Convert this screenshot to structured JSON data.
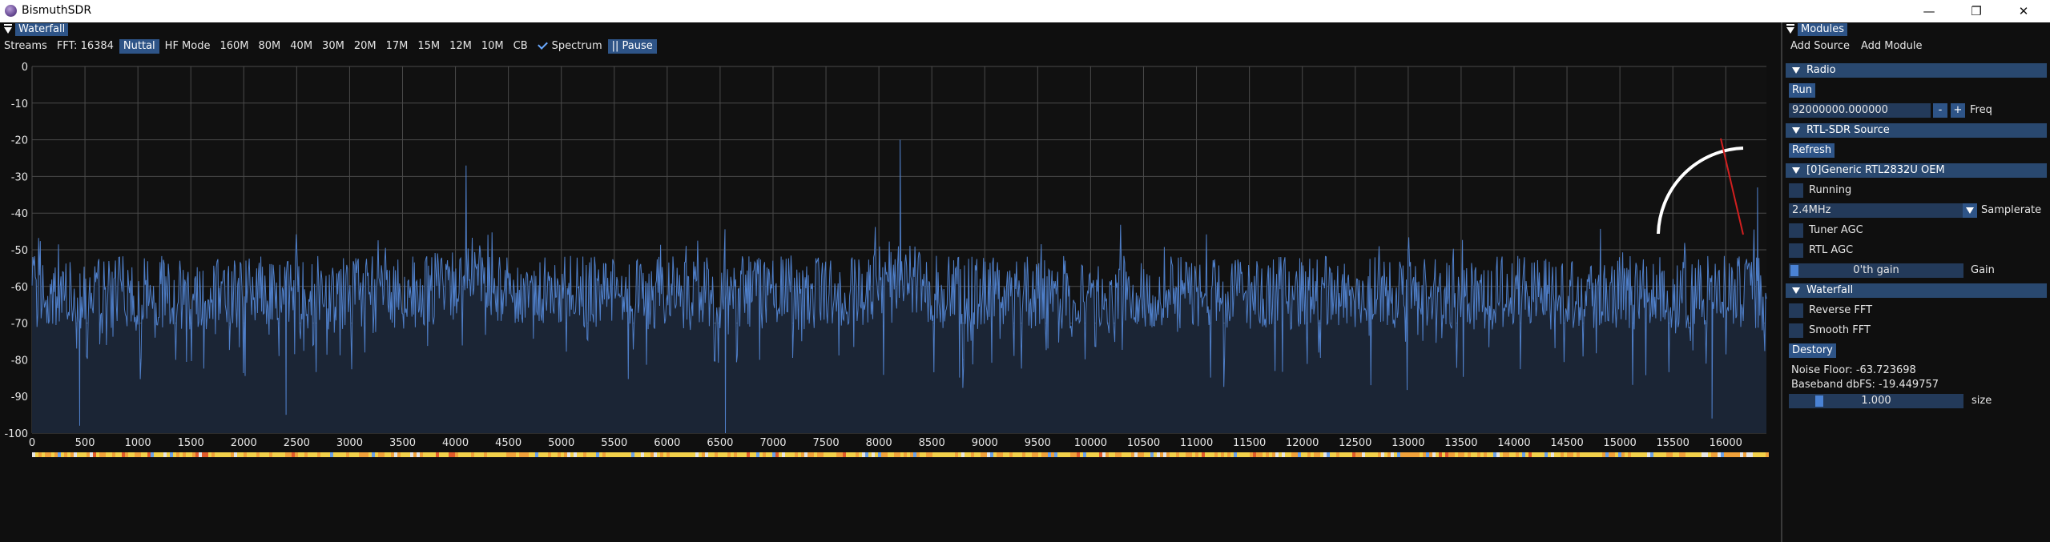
{
  "window": {
    "title": "BismuthSDR",
    "controls": [
      "—",
      "❐",
      "✕"
    ]
  },
  "waterfall": {
    "title": "Waterfall",
    "toolbar": [
      {
        "label": "Streams",
        "active": false
      },
      {
        "label": "FFT: 16384",
        "active": false
      },
      {
        "label": "Nuttal",
        "active": true
      },
      {
        "label": "HF Mode",
        "active": false
      },
      {
        "label": "160M",
        "active": false
      },
      {
        "label": "80M",
        "active": false
      },
      {
        "label": "40M",
        "active": false
      },
      {
        "label": "30M",
        "active": false
      },
      {
        "label": "20M",
        "active": false
      },
      {
        "label": "17M",
        "active": false
      },
      {
        "label": "15M",
        "active": false
      },
      {
        "label": "12M",
        "active": false
      },
      {
        "label": "10M",
        "active": false
      },
      {
        "label": "CB",
        "active": false
      }
    ],
    "spectrum_label": "Spectrum",
    "spectrum_checked": true,
    "pause_label": "|| Pause",
    "pause_active": true
  },
  "chart_data": {
    "type": "line",
    "title": "",
    "xlabel": "",
    "ylabel": "",
    "xlim": [
      0,
      16384
    ],
    "ylim": [
      -100,
      0
    ],
    "yticks": [
      0,
      -10,
      -20,
      -30,
      -40,
      -50,
      -60,
      -70,
      -80,
      -90,
      -100
    ],
    "xticks": [
      0,
      500,
      1000,
      1500,
      2000,
      2500,
      3000,
      3500,
      4000,
      4500,
      5000,
      5500,
      6000,
      6500,
      7000,
      7500,
      8000,
      8500,
      9000,
      9500,
      10000,
      10500,
      11000,
      11500,
      12000,
      12500,
      13000,
      13500,
      14000,
      14500,
      15000,
      15500,
      16000
    ],
    "grid": true,
    "noise_floor_db": -63.7,
    "peaks": [
      {
        "x": 4100,
        "y": -27
      },
      {
        "x": 8200,
        "y": -20
      },
      {
        "x": 16300,
        "y": -33
      }
    ],
    "dips": [
      {
        "x": 450,
        "y": -98
      },
      {
        "x": 2400,
        "y": -95
      },
      {
        "x": 6550,
        "y": -100
      },
      {
        "x": 15870,
        "y": -96
      }
    ],
    "series_color": "#4f7fc9",
    "fill_color": "#1b2535"
  },
  "modules": {
    "title": "Modules",
    "menu": [
      "Add Source",
      "Add Module"
    ],
    "radio": {
      "header": "Radio",
      "run_label": "Run",
      "freq_value": "92000000.000000",
      "minus_label": "-",
      "plus_label": "+",
      "freq_label": "Freq"
    },
    "rtl": {
      "header": "RTL-SDR Source",
      "refresh_label": "Refresh",
      "device_header": "[0]Generic RTL2832U OEM",
      "running_label": "Running",
      "samplerate_value": "2.4MHz",
      "samplerate_label": "Samplerate",
      "tuner_agc_label": "Tuner AGC",
      "rtl_agc_label": "RTL AGC",
      "gain_value": "0'th gain",
      "gain_label": "Gain"
    },
    "waterfall_module": {
      "header": "Waterfall",
      "reverse_fft_label": "Reverse FFT",
      "smooth_fft_label": "Smooth FFT",
      "destroy_label": "Destory",
      "noise_floor": "Noise Floor: -63.723698",
      "baseband": "Baseband dbFS: -19.449757",
      "size_value": "1.000",
      "size_label": "size"
    }
  }
}
